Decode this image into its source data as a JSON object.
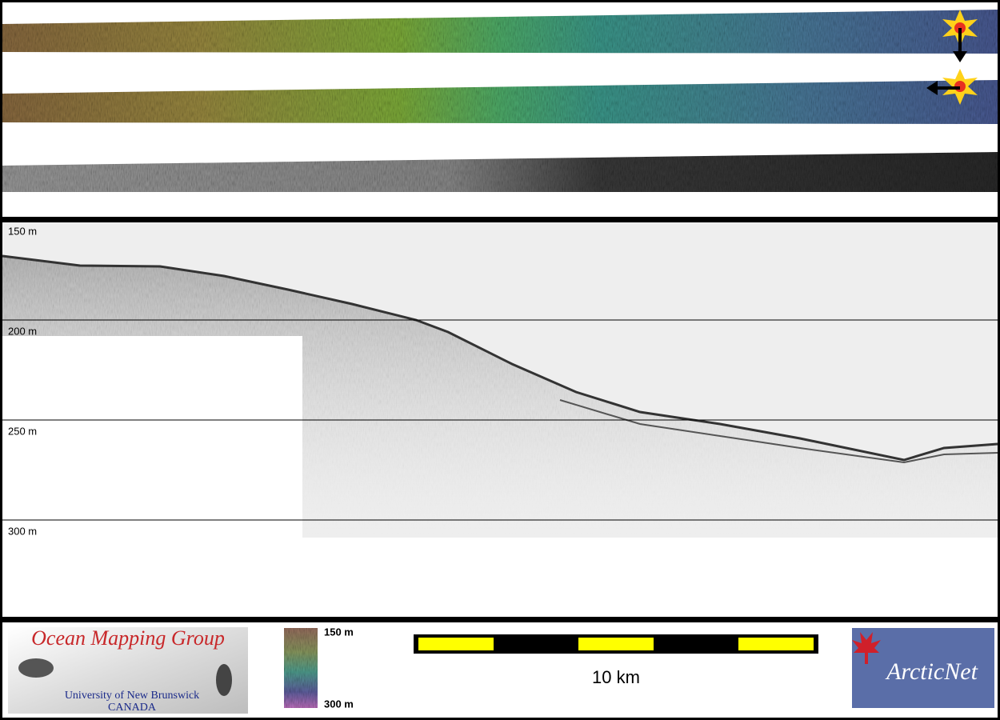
{
  "profile": {
    "depth_labels": [
      "150 m",
      "200 m",
      "250 m",
      "300 m"
    ]
  },
  "footer": {
    "logo": {
      "title": "Ocean Mapping Group",
      "university": "University of New Brunswick",
      "country": "CANADA"
    },
    "colorbar": {
      "top_label": "150 m",
      "bottom_label": "300 m"
    },
    "scale_bar": {
      "label": "10 km"
    },
    "partner_logo": {
      "label": "ArcticNet"
    }
  }
}
